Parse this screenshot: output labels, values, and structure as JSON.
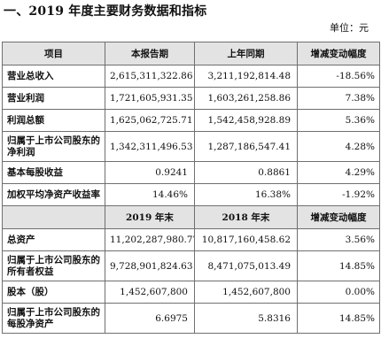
{
  "title": "一、2019 年度主要财务数据和指标",
  "unit_label": "单位：元",
  "table1": {
    "headers": [
      "项目",
      "本报告期",
      "上年同期",
      "增减变动幅度"
    ],
    "rows": [
      {
        "label": "营业总收入",
        "current": "2,615,311,322.86",
        "previous": "3,211,192,814.48",
        "change": "-18.56%"
      },
      {
        "label": "营业利润",
        "current": "1,721,605,931.35",
        "previous": "1,603,261,258.86",
        "change": "7.38%"
      },
      {
        "label": "利润总额",
        "current": "1,625,062,725.71",
        "previous": "1,542,458,928.89",
        "change": "5.36%"
      },
      {
        "label": "归属于上市公司股东的净利润",
        "current": "1,342,311,496.53",
        "previous": "1,287,186,547.41",
        "change": "4.28%"
      },
      {
        "label": "基本每股收益",
        "current": "0.9241",
        "previous": "0.8861",
        "change": "4.29%"
      },
      {
        "label": "加权平均净资产收益率",
        "current": "14.46%",
        "previous": "16.38%",
        "change": "-1.92%"
      }
    ]
  },
  "table2": {
    "headers": [
      "",
      "2019 年末",
      "2018 年末",
      "增减变动幅度"
    ],
    "rows": [
      {
        "label": "总资产",
        "current": "11,202,287,980.77",
        "previous": "10,817,160,458.62",
        "change": "3.56%"
      },
      {
        "label": "归属于上市公司股东的所有者权益",
        "current": "9,728,901,824.63",
        "previous": "8,471,075,013.49",
        "change": "14.85%"
      },
      {
        "label": "股本（股）",
        "current": "1,452,607,800",
        "previous": "1,452,607,800",
        "change": "0.00%"
      },
      {
        "label": "归属于上市公司股东的每股净资产",
        "current": "6.6975",
        "previous": "5.8316",
        "change": "14.85%"
      }
    ]
  }
}
